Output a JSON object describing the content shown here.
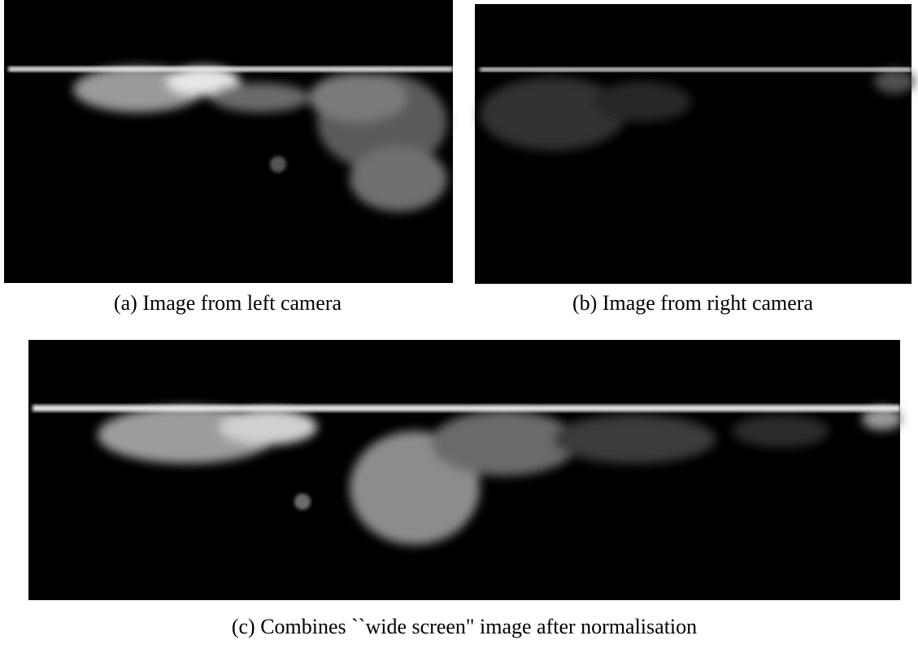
{
  "figures": [
    {
      "caption": "(a) Image from left camera"
    },
    {
      "caption": "(b) Image from right camera"
    },
    {
      "caption": "(c) Combines ``wide screen\" image after normalisation"
    }
  ]
}
